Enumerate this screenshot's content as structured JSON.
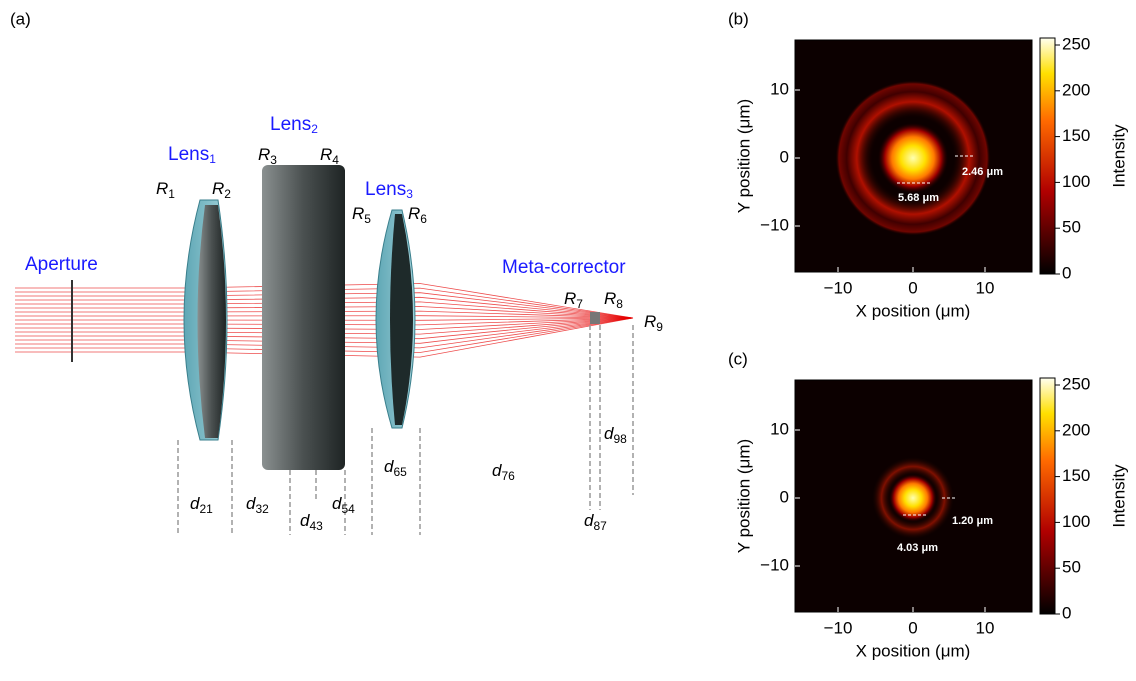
{
  "diagram": {
    "label": "(a)",
    "aperture": "Aperture",
    "meta_corrector": "Meta-corrector",
    "lenses": [
      {
        "base": "Lens",
        "sub": "1"
      },
      {
        "base": "Lens",
        "sub": "2"
      },
      {
        "base": "Lens",
        "sub": "3"
      }
    ],
    "radii": [
      {
        "base": "R",
        "sub": "1"
      },
      {
        "base": "R",
        "sub": "2"
      },
      {
        "base": "R",
        "sub": "3"
      },
      {
        "base": "R",
        "sub": "4"
      },
      {
        "base": "R",
        "sub": "5"
      },
      {
        "base": "R",
        "sub": "6"
      },
      {
        "base": "R",
        "sub": "7"
      },
      {
        "base": "R",
        "sub": "8"
      },
      {
        "base": "R",
        "sub": "9"
      }
    ],
    "distances": [
      {
        "base": "d",
        "sub": "21"
      },
      {
        "base": "d",
        "sub": "32"
      },
      {
        "base": "d",
        "sub": "43"
      },
      {
        "base": "d",
        "sub": "54"
      },
      {
        "base": "d",
        "sub": "65"
      },
      {
        "base": "d",
        "sub": "76"
      },
      {
        "base": "d",
        "sub": "98"
      },
      {
        "base": "d",
        "sub": "87"
      }
    ]
  },
  "maps": [
    {
      "label": "(b)",
      "x_label": "X position (μm)",
      "y_label": "Y position (μm)",
      "colorbar_label": "Intensity",
      "x_ticks": [
        "−10",
        "0",
        "10"
      ],
      "y_ticks": [
        "10",
        "0",
        "−10"
      ],
      "colorbar_ticks": [
        "250",
        "200",
        "150",
        "100",
        "50",
        "0"
      ],
      "annotations": [
        "5.68 μm",
        "2.46 μm"
      ]
    },
    {
      "label": "(c)",
      "x_label": "X position (μm)",
      "y_label": "Y position (μm)",
      "colorbar_label": "Intensity",
      "x_ticks": [
        "−10",
        "0",
        "10"
      ],
      "y_ticks": [
        "10",
        "0",
        "−10"
      ],
      "colorbar_ticks": [
        "250",
        "200",
        "150",
        "100",
        "50",
        "0"
      ],
      "annotations": [
        "4.03 μm",
        "1.20 μm"
      ]
    }
  ]
}
